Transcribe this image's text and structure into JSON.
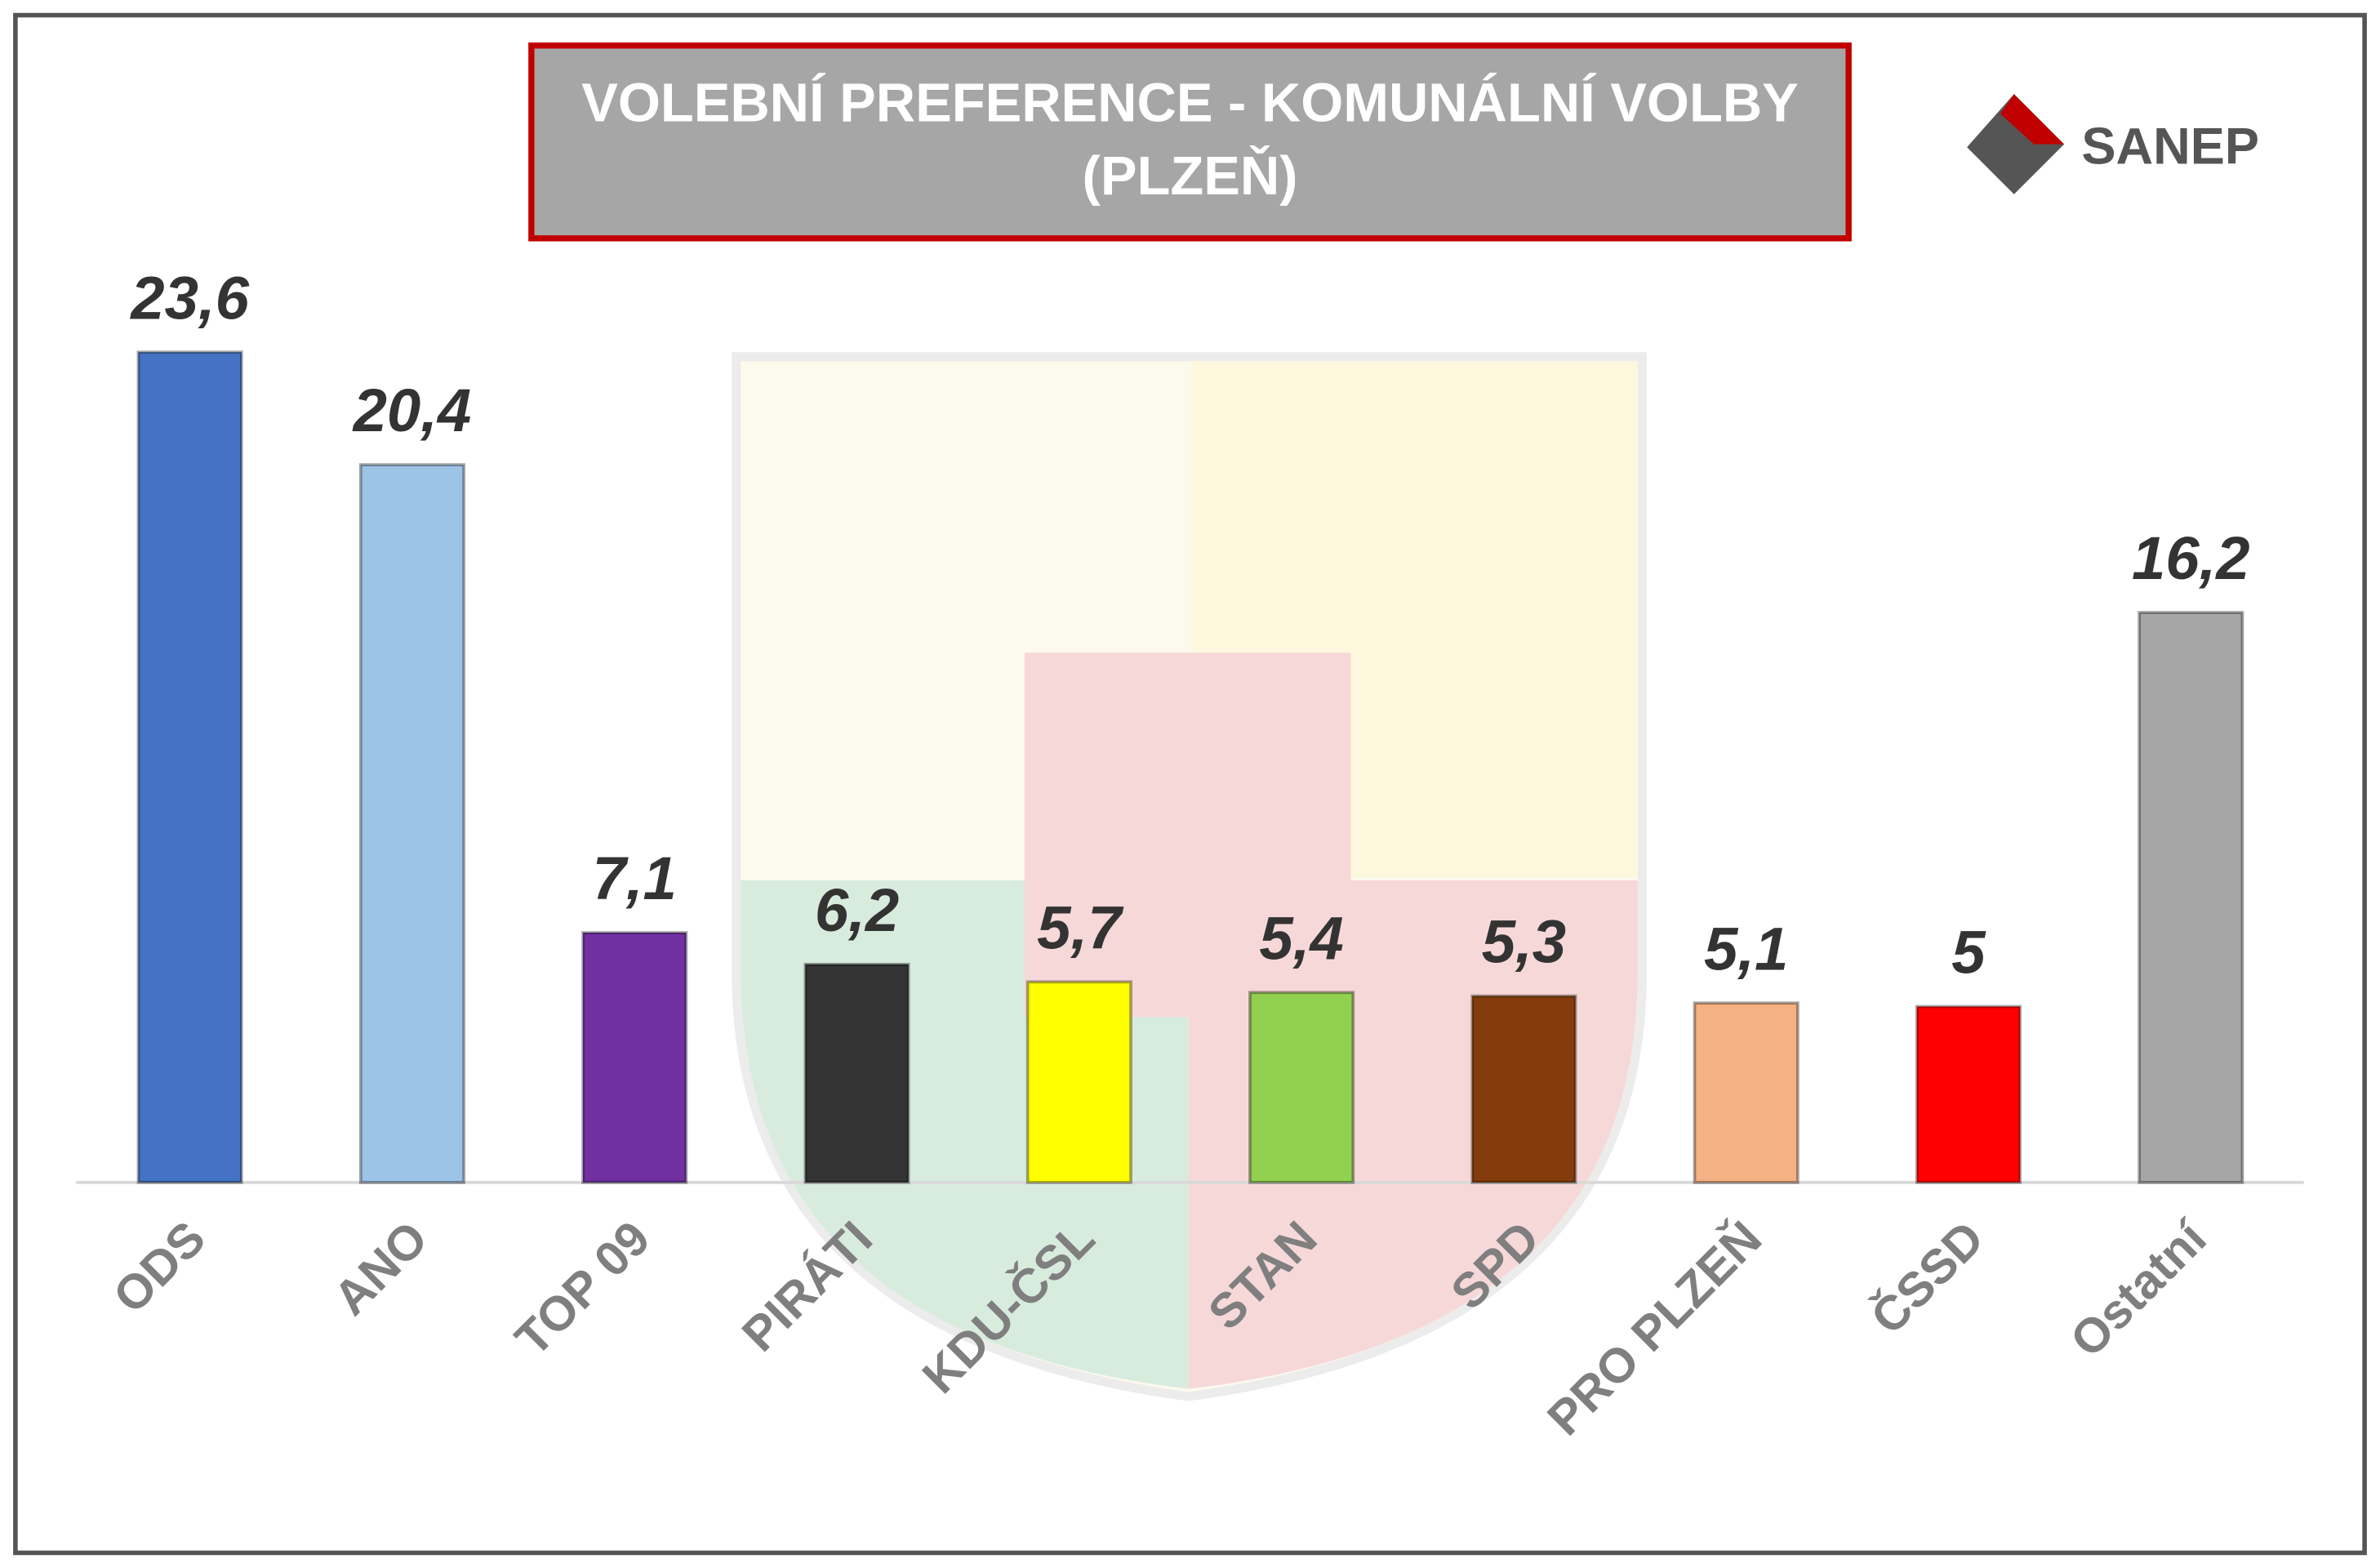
{
  "chart_data": {
    "type": "bar",
    "title": [
      "VOLEBNÍ PREFERENCE - KOMUNÁLNÍ VOLBY",
      "(PLZEŇ)"
    ],
    "logo": "SANEP",
    "categories": [
      "ODS",
      "ANO",
      "TOP 09",
      "PIRÁTI",
      "KDU-ČSL",
      "STAN",
      "SPD",
      "PRO PLZEŇ",
      "ČSSD",
      "Ostatní"
    ],
    "values": [
      23.6,
      20.4,
      7.1,
      6.2,
      5.7,
      5.4,
      5.3,
      5.1,
      5,
      16.2
    ],
    "value_labels": [
      "23,6",
      "20,4",
      "7,1",
      "6,2",
      "5,7",
      "5,4",
      "5,3",
      "5,1",
      "5",
      "16,2"
    ],
    "colors": [
      "#4472c4",
      "#9dc3e6",
      "#7030a0",
      "#333333",
      "#ffff00",
      "#92d050",
      "#843c0c",
      "#f4b183",
      "#ff0000",
      "#a6a6a6"
    ]
  }
}
